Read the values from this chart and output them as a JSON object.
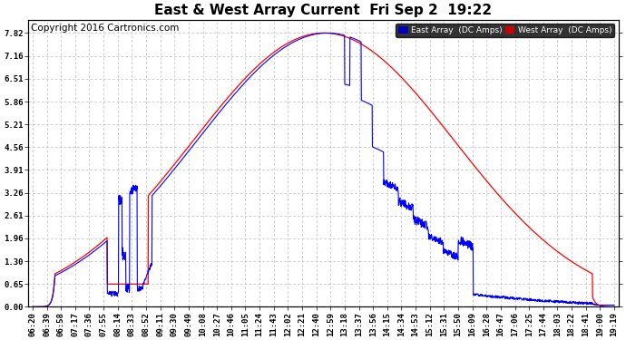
{
  "title": "East & West Array Current  Fri Sep 2  19:22",
  "copyright": "Copyright 2016 Cartronics.com",
  "legend_east": "East Array  (DC Amps)",
  "legend_west": "West Array  (DC Amps)",
  "east_color": "#0000ff",
  "west_color": "#ff0000",
  "legend_east_bg": "#0000bb",
  "legend_west_bg": "#cc0000",
  "background_color": "#ffffff",
  "plot_bg_color": "#ffffff",
  "grid_color": "#bbbbbb",
  "yticks": [
    0.0,
    0.65,
    1.3,
    1.96,
    2.61,
    3.26,
    3.91,
    4.56,
    5.21,
    5.86,
    6.51,
    7.16,
    7.82
  ],
  "ylim": [
    0.0,
    8.2
  ],
  "xtick_labels": [
    "06:20",
    "06:39",
    "06:58",
    "07:17",
    "07:36",
    "07:55",
    "08:14",
    "08:33",
    "08:52",
    "09:11",
    "09:30",
    "09:49",
    "10:08",
    "10:27",
    "10:46",
    "11:05",
    "11:24",
    "11:43",
    "12:02",
    "12:21",
    "12:40",
    "12:59",
    "13:18",
    "13:37",
    "13:56",
    "14:15",
    "14:34",
    "14:53",
    "15:12",
    "15:31",
    "15:50",
    "16:09",
    "16:28",
    "16:47",
    "17:06",
    "17:25",
    "17:44",
    "18:03",
    "18:22",
    "18:41",
    "19:00",
    "19:19"
  ],
  "title_fontsize": 11,
  "tick_fontsize": 6.5,
  "copyright_fontsize": 7.5
}
